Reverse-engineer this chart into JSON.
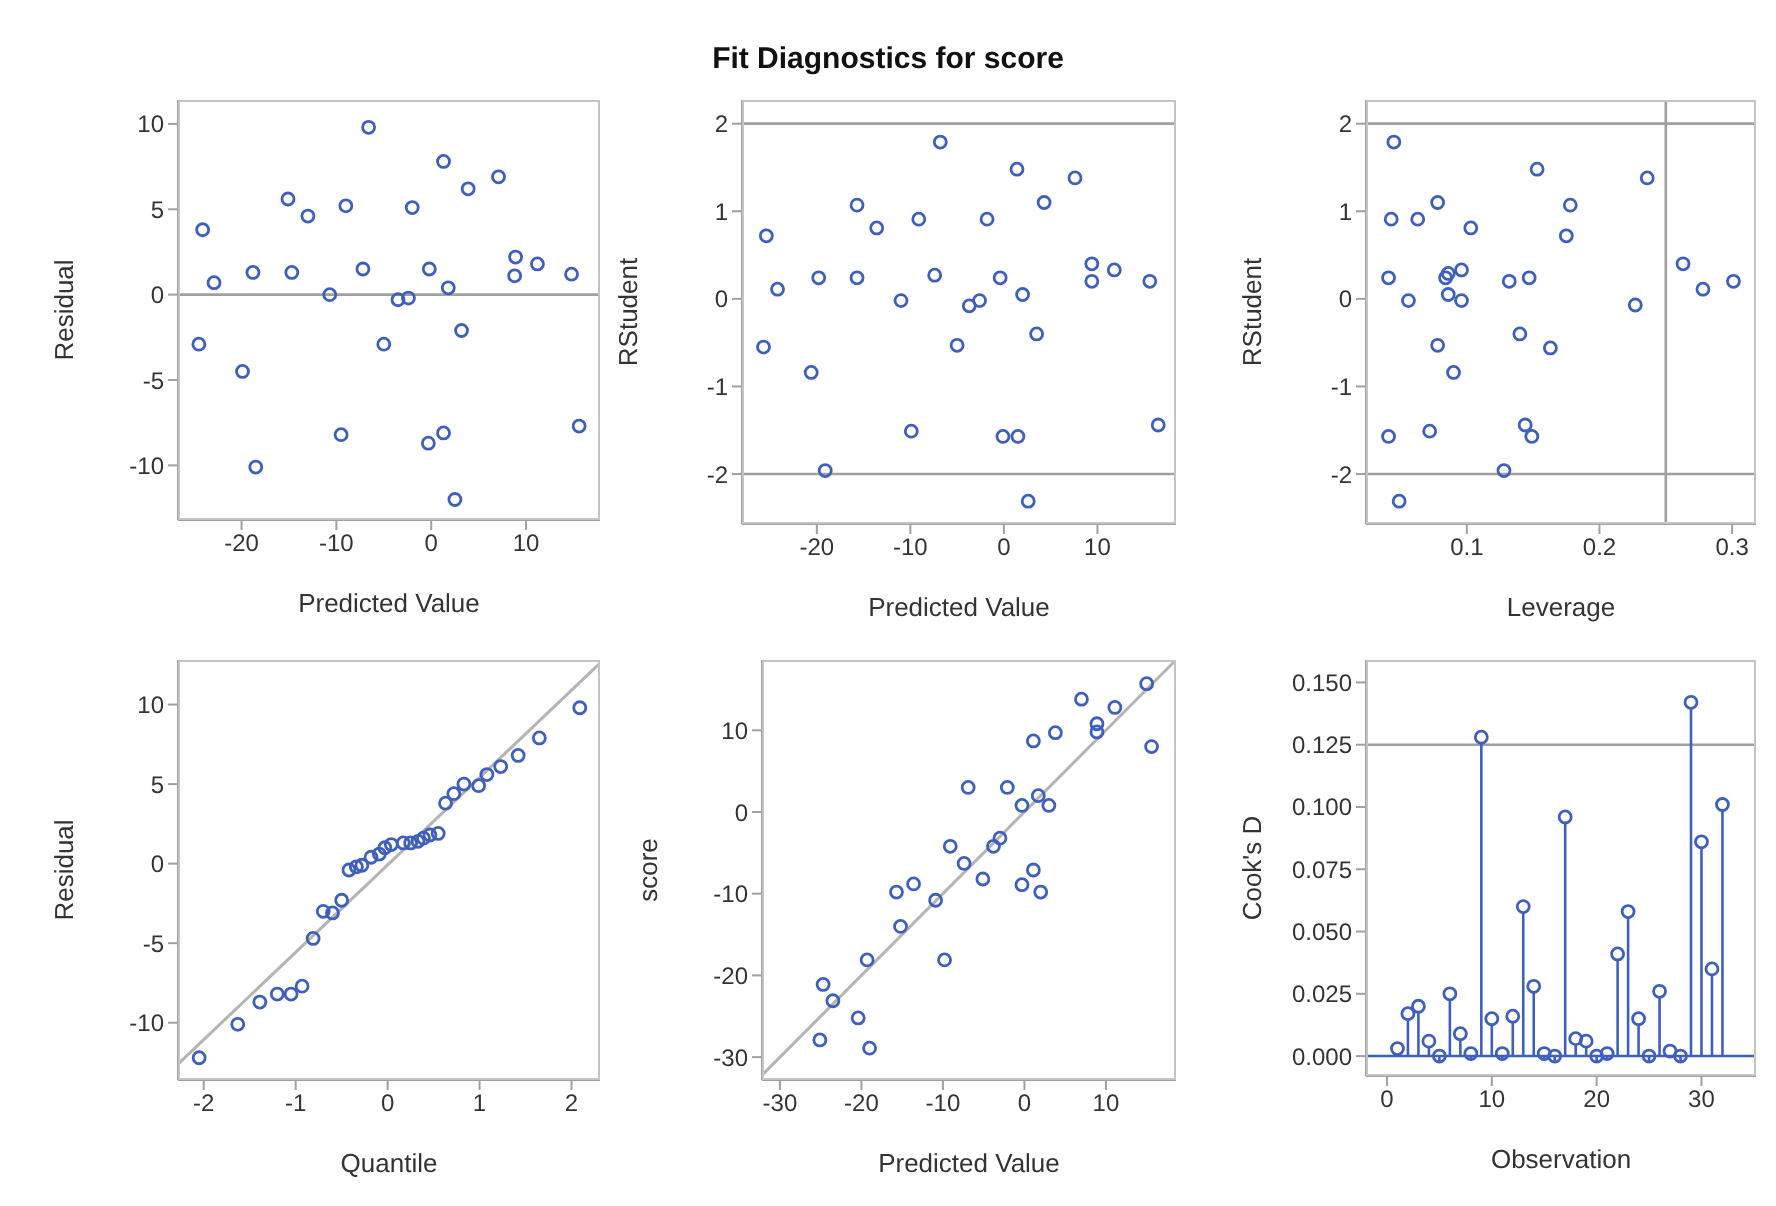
{
  "chart_data": [
    {
      "type": "scatter",
      "xlabel": "Predicted Value",
      "ylabel": "Residual",
      "color": "#3f5fbf",
      "marker": "circle",
      "xlim": [
        -26.7,
        17.8
      ],
      "ylim": [
        -13.2,
        11.4
      ],
      "xticks": [
        -20,
        -10,
        0,
        10
      ],
      "yticks": [
        -10,
        -5,
        0,
        5,
        10
      ],
      "x": [
        -6.6,
        1.3,
        7.1,
        3.9,
        -15.1,
        -13,
        -9,
        -2,
        -24.1,
        -22.9,
        -18.8,
        -14.7,
        -7.2,
        -0.2,
        8.9,
        8.8,
        11.2,
        14.8,
        1.8,
        -10.7,
        -3.5,
        -2.4,
        -24.5,
        -5,
        3.2,
        -19.9,
        -9.5,
        -0.3,
        1.3,
        15.6,
        -18.5,
        2.5
      ],
      "values": [
        9.8,
        7.8,
        6.9,
        6.2,
        5.6,
        4.6,
        5.2,
        5.1,
        3.8,
        0.7,
        1.3,
        1.3,
        1.5,
        1.5,
        2.2,
        1.1,
        1.8,
        1.2,
        0.4,
        0,
        -0.3,
        -0.2,
        -2.9,
        -2.9,
        -2.1,
        -4.5,
        -8.2,
        -8.7,
        -8.1,
        -7.7,
        -10.1,
        -12
      ],
      "ref_lines": [
        {
          "axis": "y",
          "value": 0,
          "color": "#a0a0a0"
        }
      ]
    },
    {
      "type": "scatter",
      "title": "Fit Diagnostics for score",
      "xlabel": "Predicted Value",
      "ylabel": "RStudent",
      "color": "#3f5fbf",
      "marker": "circle",
      "xlim": [
        -28,
        18.4
      ],
      "ylim": [
        -2.57,
        2.27
      ],
      "xticks": [
        -20,
        -10,
        0,
        10
      ],
      "yticks": [
        -2,
        -1,
        0,
        1,
        2
      ],
      "x": [
        -6.8,
        1.4,
        7.6,
        4.3,
        -15.7,
        -13.6,
        -9.1,
        -1.8,
        -25.4,
        -24.2,
        -19.8,
        -15.7,
        -7.4,
        -0.4,
        9.4,
        9.4,
        11.8,
        15.6,
        2,
        -11,
        -3.7,
        -2.6,
        -25.7,
        -5,
        3.5,
        -20.6,
        -9.9,
        -0.1,
        1.5,
        16.5,
        -19.1,
        2.6
      ],
      "values": [
        1.79,
        1.48,
        1.38,
        1.1,
        1.07,
        0.81,
        0.91,
        0.91,
        0.72,
        0.11,
        0.24,
        0.24,
        0.27,
        0.24,
        0.4,
        0.2,
        0.33,
        0.2,
        0.05,
        -0.02,
        -0.08,
        -0.02,
        -0.55,
        -0.53,
        -0.4,
        -0.84,
        -1.51,
        -1.57,
        -1.57,
        -1.44,
        -1.96,
        -2.31
      ],
      "ref_lines": [
        {
          "axis": "y",
          "value": 2,
          "color": "#a0a0a0"
        },
        {
          "axis": "y",
          "value": -2,
          "color": "#a0a0a0"
        }
      ]
    },
    {
      "type": "scatter",
      "xlabel": "Leverage",
      "ylabel": "RStudent",
      "color": "#3f5fbf",
      "marker": "circle",
      "xlim": [
        0.024,
        0.318
      ],
      "ylim": [
        -2.57,
        2.27
      ],
      "xticks": [
        0.1,
        0.2,
        0.3
      ],
      "yticks": [
        -2,
        -1,
        0,
        1,
        2
      ],
      "x": [
        0.045,
        0.153,
        0.236,
        0.178,
        0.078,
        0.043,
        0.063,
        0.103,
        0.175,
        0.041,
        0.084,
        0.086,
        0.096,
        0.132,
        0.147,
        0.086,
        0.056,
        0.096,
        0.227,
        0.263,
        0.278,
        0.301,
        0.078,
        0.14,
        0.163,
        0.09,
        0.072,
        0.041,
        0.144,
        0.149,
        0.128,
        0.049
      ],
      "values": [
        1.79,
        1.48,
        1.38,
        1.07,
        1.1,
        0.91,
        0.91,
        0.81,
        0.72,
        0.24,
        0.24,
        0.29,
        0.33,
        0.2,
        0.24,
        0.05,
        -0.02,
        -0.02,
        -0.07,
        0.4,
        0.11,
        0.2,
        -0.53,
        -0.4,
        -0.56,
        -0.84,
        -1.51,
        -1.57,
        -1.44,
        -1.57,
        -1.96,
        -2.31
      ],
      "ref_lines": [
        {
          "axis": "y",
          "value": 2,
          "color": "#a0a0a0"
        },
        {
          "axis": "y",
          "value": -2,
          "color": "#a0a0a0"
        },
        {
          "axis": "x",
          "value": 0.25,
          "color": "#a0a0a0"
        }
      ]
    },
    {
      "type": "scatter",
      "xlabel": "Quantile",
      "ylabel": "Residual",
      "xlim": [
        -2.28,
        2.31
      ],
      "ylim": [
        -13.6,
        12.8
      ],
      "xticks": [
        -2,
        -1,
        0,
        1,
        2
      ],
      "yticks": [
        -10,
        -5,
        0,
        5,
        10
      ],
      "series": [
        {
          "type": "line",
          "marker": "none",
          "color": "#b4b4b4",
          "x": [
            -2.28,
            2.31
          ],
          "values": [
            -12.6,
            12.6
          ]
        },
        {
          "type": "scatter",
          "marker": "circle",
          "color": "#3f5fbf",
          "x": [
            -2.05,
            -1.63,
            -1.39,
            -1.2,
            -1.05,
            -0.93,
            -0.81,
            -0.7,
            -0.6,
            -0.5,
            -0.42,
            -0.34,
            -0.28,
            -0.18,
            -0.09,
            -0.03,
            0.04,
            0.17,
            0.25,
            0.33,
            0.39,
            0.46,
            0.55,
            0.63,
            0.72,
            0.83,
            0.99,
            1.08,
            1.23,
            1.42,
            1.65,
            2.09
          ],
          "values": [
            -12.2,
            -10.1,
            -8.7,
            -8.2,
            -8.2,
            -7.7,
            -4.7,
            -3,
            -3.1,
            -2.3,
            -0.4,
            -0.2,
            -0.1,
            0.4,
            0.6,
            1,
            1.2,
            1.3,
            1.3,
            1.4,
            1.6,
            1.8,
            1.9,
            3.8,
            4.4,
            5,
            4.9,
            5.6,
            6.1,
            6.8,
            7.9,
            9.8
          ]
        }
      ]
    },
    {
      "type": "scatter",
      "xlabel": "Predicted Value",
      "ylabel": "score",
      "xlim": [
        -32.2,
        18.6
      ],
      "ylim": [
        -32.8,
        18.6
      ],
      "xticks": [
        -30,
        -20,
        -10,
        0,
        10
      ],
      "yticks": [
        -30,
        -20,
        -10,
        0,
        10
      ],
      "series": [
        {
          "type": "line",
          "marker": "none",
          "color": "#b4b4b4",
          "x": [
            -32.2,
            18.6
          ],
          "values": [
            -32.2,
            18.6
          ]
        },
        {
          "type": "scatter",
          "marker": "circle",
          "color": "#3f5fbf",
          "x": [
            15.6,
            15,
            7,
            11.1,
            8.9,
            8.9,
            3.8,
            1.1,
            -6.9,
            -2.1,
            1.7,
            -0.3,
            3,
            -3,
            -3.8,
            -9.1,
            -7.4,
            -5.1,
            1.1,
            -0.3,
            2,
            -15.7,
            -13.6,
            -10.9,
            -15.2,
            -9.8,
            -19.3,
            -24.7,
            -23.5,
            -20.4,
            -25.1,
            -19
          ],
          "values": [
            8,
            15.7,
            13.8,
            12.8,
            10.8,
            9.8,
            9.7,
            8.7,
            3,
            3,
            2,
            0.8,
            0.8,
            -3.2,
            -4.2,
            -4.2,
            -6.3,
            -8.2,
            -7.1,
            -8.9,
            -9.8,
            -9.8,
            -8.8,
            -10.8,
            -14,
            -18.1,
            -18.1,
            -21.1,
            -23.1,
            -25.2,
            -27.9,
            -28.9
          ]
        }
      ]
    },
    {
      "type": "lollipop",
      "xlabel": "Observation",
      "ylabel": "Cook's D",
      "color": "#3f5fbf",
      "marker": "circle",
      "xlim": [
        -2,
        35.2
      ],
      "ylim": [
        -0.008,
        0.159
      ],
      "xticks": [
        0,
        10,
        20,
        30
      ],
      "yticks": [
        {
          "value": 0,
          "label": "0.000"
        },
        {
          "value": 0.025,
          "label": "0.025"
        },
        {
          "value": 0.05,
          "label": "0.050"
        },
        {
          "value": 0.075,
          "label": "0.075"
        },
        {
          "value": 0.1,
          "label": "0.100"
        },
        {
          "value": 0.125,
          "label": "0.125"
        },
        {
          "value": 0.15,
          "label": "0.150"
        }
      ],
      "x": [
        1,
        2,
        3,
        4,
        5,
        6,
        7,
        8,
        9,
        10,
        11,
        12,
        13,
        14,
        15,
        16,
        17,
        18,
        19,
        20,
        21,
        22,
        23,
        24,
        25,
        26,
        27,
        28,
        29,
        30,
        31,
        32
      ],
      "values": [
        0.003,
        0.017,
        0.02,
        0.006,
        0,
        0.025,
        0.009,
        0.001,
        0.128,
        0.015,
        0.001,
        0.016,
        0.06,
        0.028,
        0.001,
        0,
        0.096,
        0.007,
        0.006,
        0,
        0.001,
        0.041,
        0.058,
        0.015,
        0,
        0.026,
        0.002,
        0,
        0.142,
        0.086,
        0.035,
        0.101
      ],
      "ref_lines": [
        {
          "axis": "y",
          "value": 0.125,
          "color": "#a0a0a0"
        },
        {
          "axis": "y",
          "value": 0,
          "color": "#3f5fbf"
        }
      ]
    }
  ]
}
